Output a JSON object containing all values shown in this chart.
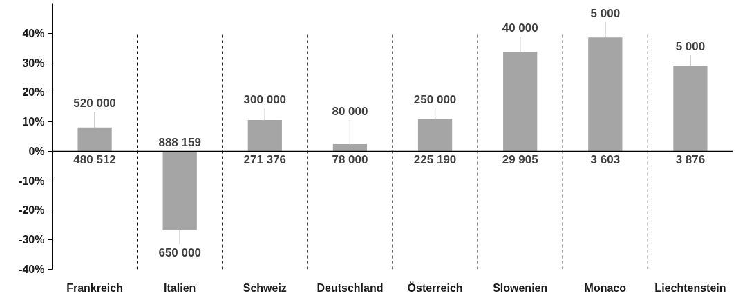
{
  "chart_data": {
    "type": "bar",
    "categories": [
      "Frankreich",
      "Italien",
      "Schweiz",
      "Deutschland",
      "Österreich",
      "Slowenien",
      "Monaco",
      "Liechtenstein"
    ],
    "values": [
      8.1,
      -26.8,
      10.6,
      2.4,
      10.9,
      33.7,
      38.6,
      29.1
    ],
    "errors": [
      [
        8.1,
        13.3
      ],
      [
        -31.5,
        -26.8
      ],
      [
        10.6,
        14.5
      ],
      [
        2.4,
        10.6
      ],
      [
        10.9,
        14.7
      ],
      [
        33.7,
        38.8
      ],
      [
        38.6,
        43.8
      ],
      [
        29.1,
        32.6
      ]
    ],
    "color": "#a5a5a5",
    "ylim": [
      -40,
      50
    ],
    "yticks": [
      {
        "value": -40,
        "label": "-40%"
      },
      {
        "value": -30,
        "label": "-30%"
      },
      {
        "value": -20,
        "label": "-20%"
      },
      {
        "value": -10,
        "label": "-10%"
      },
      {
        "value": 0,
        "label": "0%"
      },
      {
        "value": 10,
        "label": "10%"
      },
      {
        "value": 20,
        "label": "20%"
      },
      {
        "value": 30,
        "label": "30%"
      },
      {
        "value": 40,
        "label": "40%"
      }
    ],
    "grid": "x",
    "ref_lines": [
      {
        "axis": "y",
        "value": 0,
        "color": "#000000"
      }
    ],
    "annotations": [
      {
        "text": "520 000",
        "x": "Frankreich",
        "y": 13.3
      },
      {
        "text": "480 512",
        "x": "Frankreich",
        "y": 0
      },
      {
        "text": "650 000",
        "x": "Italien",
        "y": -31.5
      },
      {
        "text": "888 159",
        "x": "Italien",
        "y": 0
      },
      {
        "text": "300 000",
        "x": "Schweiz",
        "y": 14.5
      },
      {
        "text": "271 376",
        "x": "Schweiz",
        "y": 0
      },
      {
        "text": "80 000",
        "x": "Deutschland",
        "y": 10.6
      },
      {
        "text": "78 000",
        "x": "Deutschland",
        "y": 0
      },
      {
        "text": "250 000",
        "x": "Österreich",
        "y": 14.7
      },
      {
        "text": "225 190",
        "x": "Österreich",
        "y": 0
      },
      {
        "text": "40 000",
        "x": "Slowenien",
        "y": 38.8
      },
      {
        "text": "29 905",
        "x": "Slowenien",
        "y": 0
      },
      {
        "text": "5 000",
        "x": "Monaco",
        "y": 43.8
      },
      {
        "text": "3 603",
        "x": "Monaco",
        "y": 0
      },
      {
        "text": "5 000",
        "x": "Liechtenstein",
        "y": 32.6
      },
      {
        "text": "3 876",
        "x": "Liechtenstein",
        "y": 0
      }
    ]
  }
}
